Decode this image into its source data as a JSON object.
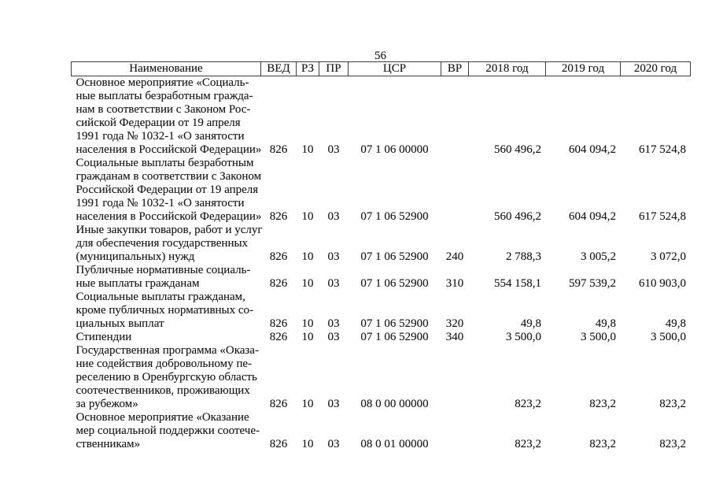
{
  "page": {
    "number": "56",
    "background_color": "#ffffff",
    "text_color": "#1b1b1b",
    "border_color": "#3d3d3d"
  },
  "table": {
    "columns": [
      {
        "key": "name",
        "label": "Наименование"
      },
      {
        "key": "ved",
        "label": "ВЕД"
      },
      {
        "key": "rz",
        "label": "РЗ"
      },
      {
        "key": "pr",
        "label": "ПР"
      },
      {
        "key": "csr",
        "label": "ЦСР"
      },
      {
        "key": "vr",
        "label": "ВР"
      },
      {
        "key": "y2018",
        "label": "2018 год"
      },
      {
        "key": "y2019",
        "label": "2019 год"
      },
      {
        "key": "y2020",
        "label": "2020 год"
      }
    ],
    "rows": [
      {
        "name": "Основное мероприятие «Социаль-\nные выплаты безработным гражда-\nнам в соответствии с Законом Рос-\nсийской Федерации от 19 апреля\n1991 года № 1032-1 «О занятости\nнаселения в Российской Федерации»",
        "ved": "826",
        "rz": "10",
        "pr": "03",
        "csr": "07 1 06 00000",
        "vr": "",
        "y2018": "560 496,2",
        "y2019": "604 094,2",
        "y2020": "617 524,8"
      },
      {
        "name": "Социальные выплаты безработным\nгражданам в соответствии с Законом\nРоссийской Федерации от 19 апреля\n1991 года № 1032-1 «О занятости\nнаселения в Российской Федерации»",
        "ved": "826",
        "rz": "10",
        "pr": "03",
        "csr": "07 1 06 52900",
        "vr": "",
        "y2018": "560 496,2",
        "y2019": "604 094,2",
        "y2020": "617 524,8"
      },
      {
        "name": "Иные закупки товаров, работ и услуг\nдля обеспечения государственных\n(муниципальных) нужд",
        "ved": "826",
        "rz": "10",
        "pr": "03",
        "csr": "07 1 06 52900",
        "vr": "240",
        "y2018": "2 788,3",
        "y2019": "3 005,2",
        "y2020": "3 072,0"
      },
      {
        "name": "Публичные нормативные социаль-\nные выплаты гражданам",
        "ved": "826",
        "rz": "10",
        "pr": "03",
        "csr": "07 1 06 52900",
        "vr": "310",
        "y2018": "554 158,1",
        "y2019": "597 539,2",
        "y2020": "610 903,0"
      },
      {
        "name": "Социальные выплаты гражданам,\nкроме публичных нормативных со-\nциальных выплат",
        "ved": "826",
        "rz": "10",
        "pr": "03",
        "csr": "07 1 06 52900",
        "vr": "320",
        "y2018": "49,8",
        "y2019": "49,8",
        "y2020": "49,8"
      },
      {
        "name": "Стипендии",
        "ved": "826",
        "rz": "10",
        "pr": "03",
        "csr": "07 1 06 52900",
        "vr": "340",
        "y2018": "3 500,0",
        "y2019": "3 500,0",
        "y2020": "3 500,0"
      },
      {
        "name": "Государственная программа «Оказа-\nние содействия добровольному пе-\nреселению в Оренбургскую область\nсоотечественников, проживающих\nза рубежом»",
        "ved": "826",
        "rz": "10",
        "pr": "03",
        "csr": "08 0 00 00000",
        "vr": "",
        "y2018": "823,2",
        "y2019": "823,2",
        "y2020": "823,2"
      },
      {
        "name": "Основное мероприятие «Оказание\nмер социальной поддержки соотече-\nственникам»",
        "ved": "826",
        "rz": "10",
        "pr": "03",
        "csr": "08 0 01 00000",
        "vr": "",
        "y2018": "823,2",
        "y2019": "823,2",
        "y2020": "823,2"
      }
    ]
  }
}
